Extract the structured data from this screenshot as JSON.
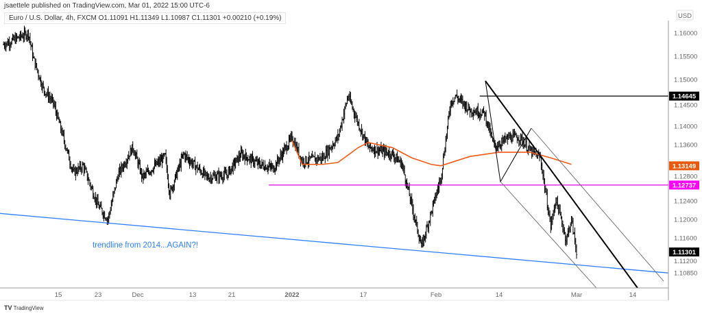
{
  "header": {
    "published": "jsaettele published on TradingView.com, Mar 01, 2022 15:00 UTC-6",
    "symbol_legend": "Euro / U.S. Dollar, 4h, FXCM  O1.11091  H1.11349  L1.10987  C1.11301  +0.00210 (+0.19%)"
  },
  "footer": {
    "logo_text": "TradingView",
    "logo_mark": "TV"
  },
  "chart_data": {
    "type": "ohlc-bar",
    "symbol": "EURUSD",
    "interval": "4h",
    "currency_label": "USD",
    "ylim": [
      1.106,
      1.163
    ],
    "y_ticks": [
      "1.16000",
      "1.15500",
      "1.15000",
      "1.14500",
      "1.14000",
      "1.13600",
      "1.12800",
      "1.12400",
      "1.12000",
      "1.11600",
      "1.11200",
      "1.10850"
    ],
    "x_ticks": [
      {
        "label": "15",
        "date": "2021-11-15"
      },
      {
        "label": "23",
        "date": "2021-11-23"
      },
      {
        "label": "Dec",
        "date": "2021-12-01"
      },
      {
        "label": "13",
        "date": "2021-12-13"
      },
      {
        "label": "21",
        "date": "2021-12-21"
      },
      {
        "label": "2022",
        "date": "2022-01-03",
        "bold": true
      },
      {
        "label": "17",
        "date": "2022-01-17"
      },
      {
        "label": "Feb",
        "date": "2022-02-01"
      },
      {
        "label": "14",
        "date": "2022-02-14"
      },
      {
        "label": "Mar",
        "date": "2022-03-01"
      },
      {
        "label": "14",
        "date": "2022-03-14"
      }
    ],
    "price_path": [
      [
        "2021-11-04",
        1.1575
      ],
      [
        "2021-11-09",
        1.16
      ],
      [
        "2021-11-10",
        1.1545
      ],
      [
        "2021-11-12",
        1.148
      ],
      [
        "2021-11-14",
        1.145
      ],
      [
        "2021-11-16",
        1.1376
      ],
      [
        "2021-11-18",
        1.13
      ],
      [
        "2021-11-20",
        1.1315
      ],
      [
        "2021-11-23",
        1.123
      ],
      [
        "2021-11-25",
        1.12
      ],
      [
        "2021-11-27",
        1.1295
      ],
      [
        "2021-11-30",
        1.1355
      ],
      [
        "2021-12-02",
        1.129
      ],
      [
        "2021-12-07",
        1.1335
      ],
      [
        "2021-12-08",
        1.1255
      ],
      [
        "2021-12-11",
        1.134
      ],
      [
        "2021-12-16",
        1.129
      ],
      [
        "2021-12-20",
        1.1296
      ],
      [
        "2021-12-23",
        1.134
      ],
      [
        "2021-12-27",
        1.1318
      ],
      [
        "2021-12-30",
        1.131
      ],
      [
        "2022-01-03",
        1.1376
      ],
      [
        "2022-01-05",
        1.1325
      ],
      [
        "2022-01-09",
        1.1332
      ],
      [
        "2022-01-12",
        1.1376
      ],
      [
        "2022-01-14",
        1.1465
      ],
      [
        "2022-01-16",
        1.1406
      ],
      [
        "2022-01-18",
        1.1355
      ],
      [
        "2022-01-23",
        1.134
      ],
      [
        "2022-01-25",
        1.1318
      ],
      [
        "2022-01-27",
        1.123
      ],
      [
        "2022-01-29",
        1.1141
      ],
      [
        "2022-01-31",
        1.1215
      ],
      [
        "2022-02-02",
        1.129
      ],
      [
        "2022-02-04",
        1.145
      ],
      [
        "2022-02-05",
        1.1465
      ],
      [
        "2022-02-08",
        1.1435
      ],
      [
        "2022-02-11",
        1.1428
      ],
      [
        "2022-02-13",
        1.1355
      ],
      [
        "2022-02-16",
        1.1376
      ],
      [
        "2022-02-18",
        1.1376
      ],
      [
        "2022-02-20",
        1.1347
      ],
      [
        "2022-02-22",
        1.1332
      ],
      [
        "2022-02-24",
        1.1185
      ],
      [
        "2022-02-25",
        1.1244
      ],
      [
        "2022-02-27",
        1.1156
      ],
      [
        "2022-02-28",
        1.12
      ],
      [
        "2022-03-01",
        1.113
      ]
    ],
    "moving_average": {
      "color": "#f05a14",
      "points": [
        [
          "2022-01-03",
          1.1369
        ],
        [
          "2022-01-05",
          1.1318
        ],
        [
          "2022-01-09",
          1.1318
        ],
        [
          "2022-01-12",
          1.1322
        ],
        [
          "2022-01-16",
          1.1354
        ],
        [
          "2022-01-18",
          1.1365
        ],
        [
          "2022-01-23",
          1.1354
        ],
        [
          "2022-01-27",
          1.1332
        ],
        [
          "2022-01-31",
          1.1318
        ],
        [
          "2022-02-02",
          1.1315
        ],
        [
          "2022-02-08",
          1.1335
        ],
        [
          "2022-02-14",
          1.1344
        ],
        [
          "2022-02-20",
          1.1344
        ],
        [
          "2022-02-24",
          1.1332
        ],
        [
          "2022-02-28",
          1.1318
        ]
      ]
    },
    "price_tags": [
      {
        "label": "1.14645",
        "value": 1.14645,
        "color": "#000000"
      },
      {
        "label": "1.13149",
        "value": 1.13149,
        "color": "#e8590c"
      },
      {
        "label": "1.12737",
        "value": 1.12737,
        "color": "#ff00ff"
      },
      {
        "label": "1.11301",
        "value": 1.11301,
        "color": "#000000"
      }
    ],
    "horizontal_levels": [
      {
        "value": 1.14645,
        "from": "2022-02-10",
        "color": "#000000"
      },
      {
        "value": 1.12737,
        "from": "2021-12-29",
        "color": "#e000e0"
      }
    ],
    "trendline": {
      "color": "#2a7fff",
      "start": [
        "2021-11-03",
        1.1213
      ],
      "end": [
        "2022-03-20",
        1.1085
      ]
    },
    "annotation": {
      "text": "trendline from 2014...AGAIN?!",
      "color": "#2a7fff"
    },
    "grid": false
  }
}
